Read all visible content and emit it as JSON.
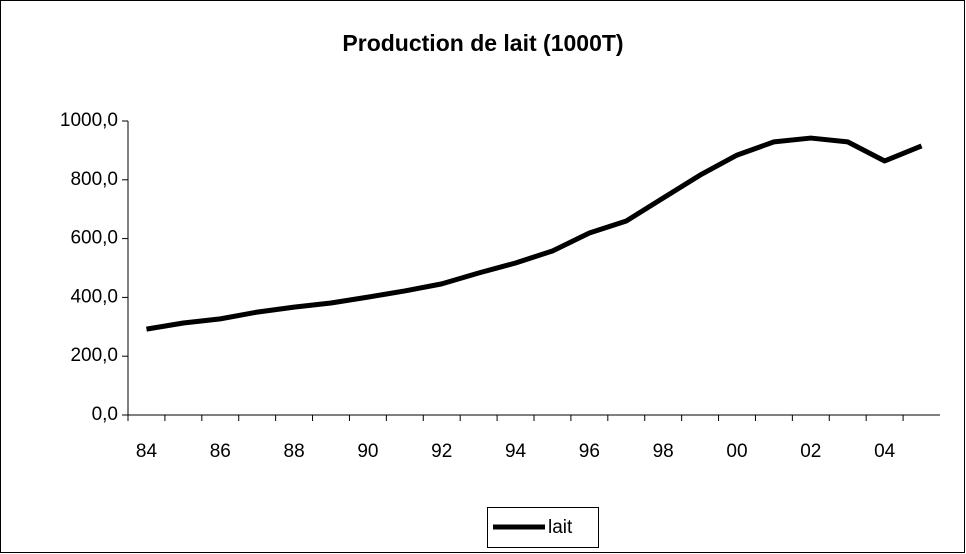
{
  "chart_data": {
    "type": "line",
    "title": "Production de lait (1000T)",
    "categories": [
      "84",
      null,
      "86",
      null,
      "88",
      null,
      "90",
      null,
      "92",
      null,
      "94",
      null,
      "96",
      null,
      "98",
      null,
      "00",
      null,
      "02",
      null,
      "04",
      null
    ],
    "series": [
      {
        "name": "lait",
        "color": "#000000",
        "values": [
          292,
          313,
          327,
          350,
          367,
          381,
          401,
          422,
          446,
          483,
          517,
          558,
          619,
          660,
          738,
          816,
          884,
          929,
          942,
          929,
          864,
          915
        ]
      }
    ],
    "ylim": [
      0,
      1000
    ],
    "yticks": [
      {
        "value": 0,
        "label": "0,0"
      },
      {
        "value": 200,
        "label": "200,0"
      },
      {
        "value": 400,
        "label": "400,0"
      },
      {
        "value": 600,
        "label": "600,0"
      },
      {
        "value": 800,
        "label": "800,0"
      },
      {
        "value": 1000,
        "label": "1000,0"
      }
    ],
    "grid": false,
    "legend": "bottom"
  }
}
